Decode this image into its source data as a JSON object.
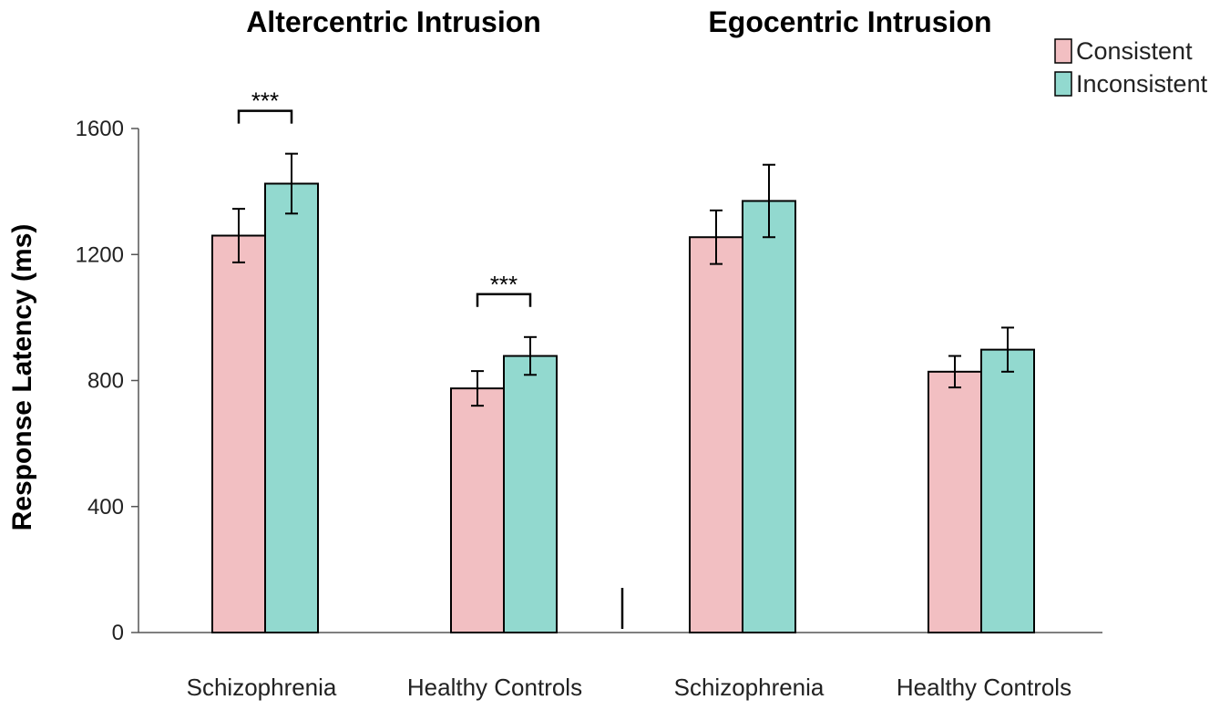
{
  "chart_data": {
    "type": "bar",
    "ylabel": "Response Latency (ms)",
    "ylim": [
      0,
      1600
    ],
    "yticks": [
      0,
      400,
      800,
      1200,
      1600
    ],
    "legend_position": "top-right",
    "series_names": [
      "Consistent",
      "Inconsistent"
    ],
    "colors": {
      "Consistent": "#f2bfc2",
      "Inconsistent": "#92d9cf"
    },
    "panels": [
      {
        "title": "Altercentric Intrusion",
        "groups": [
          {
            "category": "Schizophrenia",
            "consistent": 1260,
            "consistent_err": 85,
            "inconsistent": 1425,
            "inconsistent_err": 95,
            "significance": "***"
          },
          {
            "category": "Healthy Controls",
            "consistent": 775,
            "consistent_err": 55,
            "inconsistent": 878,
            "inconsistent_err": 60,
            "significance": "***"
          }
        ]
      },
      {
        "title": "Egocentric Intrusion",
        "groups": [
          {
            "category": "Schizophrenia",
            "consistent": 1255,
            "consistent_err": 85,
            "inconsistent": 1370,
            "inconsistent_err": 115,
            "significance": ""
          },
          {
            "category": "Healthy Controls",
            "consistent": 828,
            "consistent_err": 50,
            "inconsistent": 898,
            "inconsistent_err": 70,
            "significance": ""
          }
        ]
      }
    ]
  }
}
